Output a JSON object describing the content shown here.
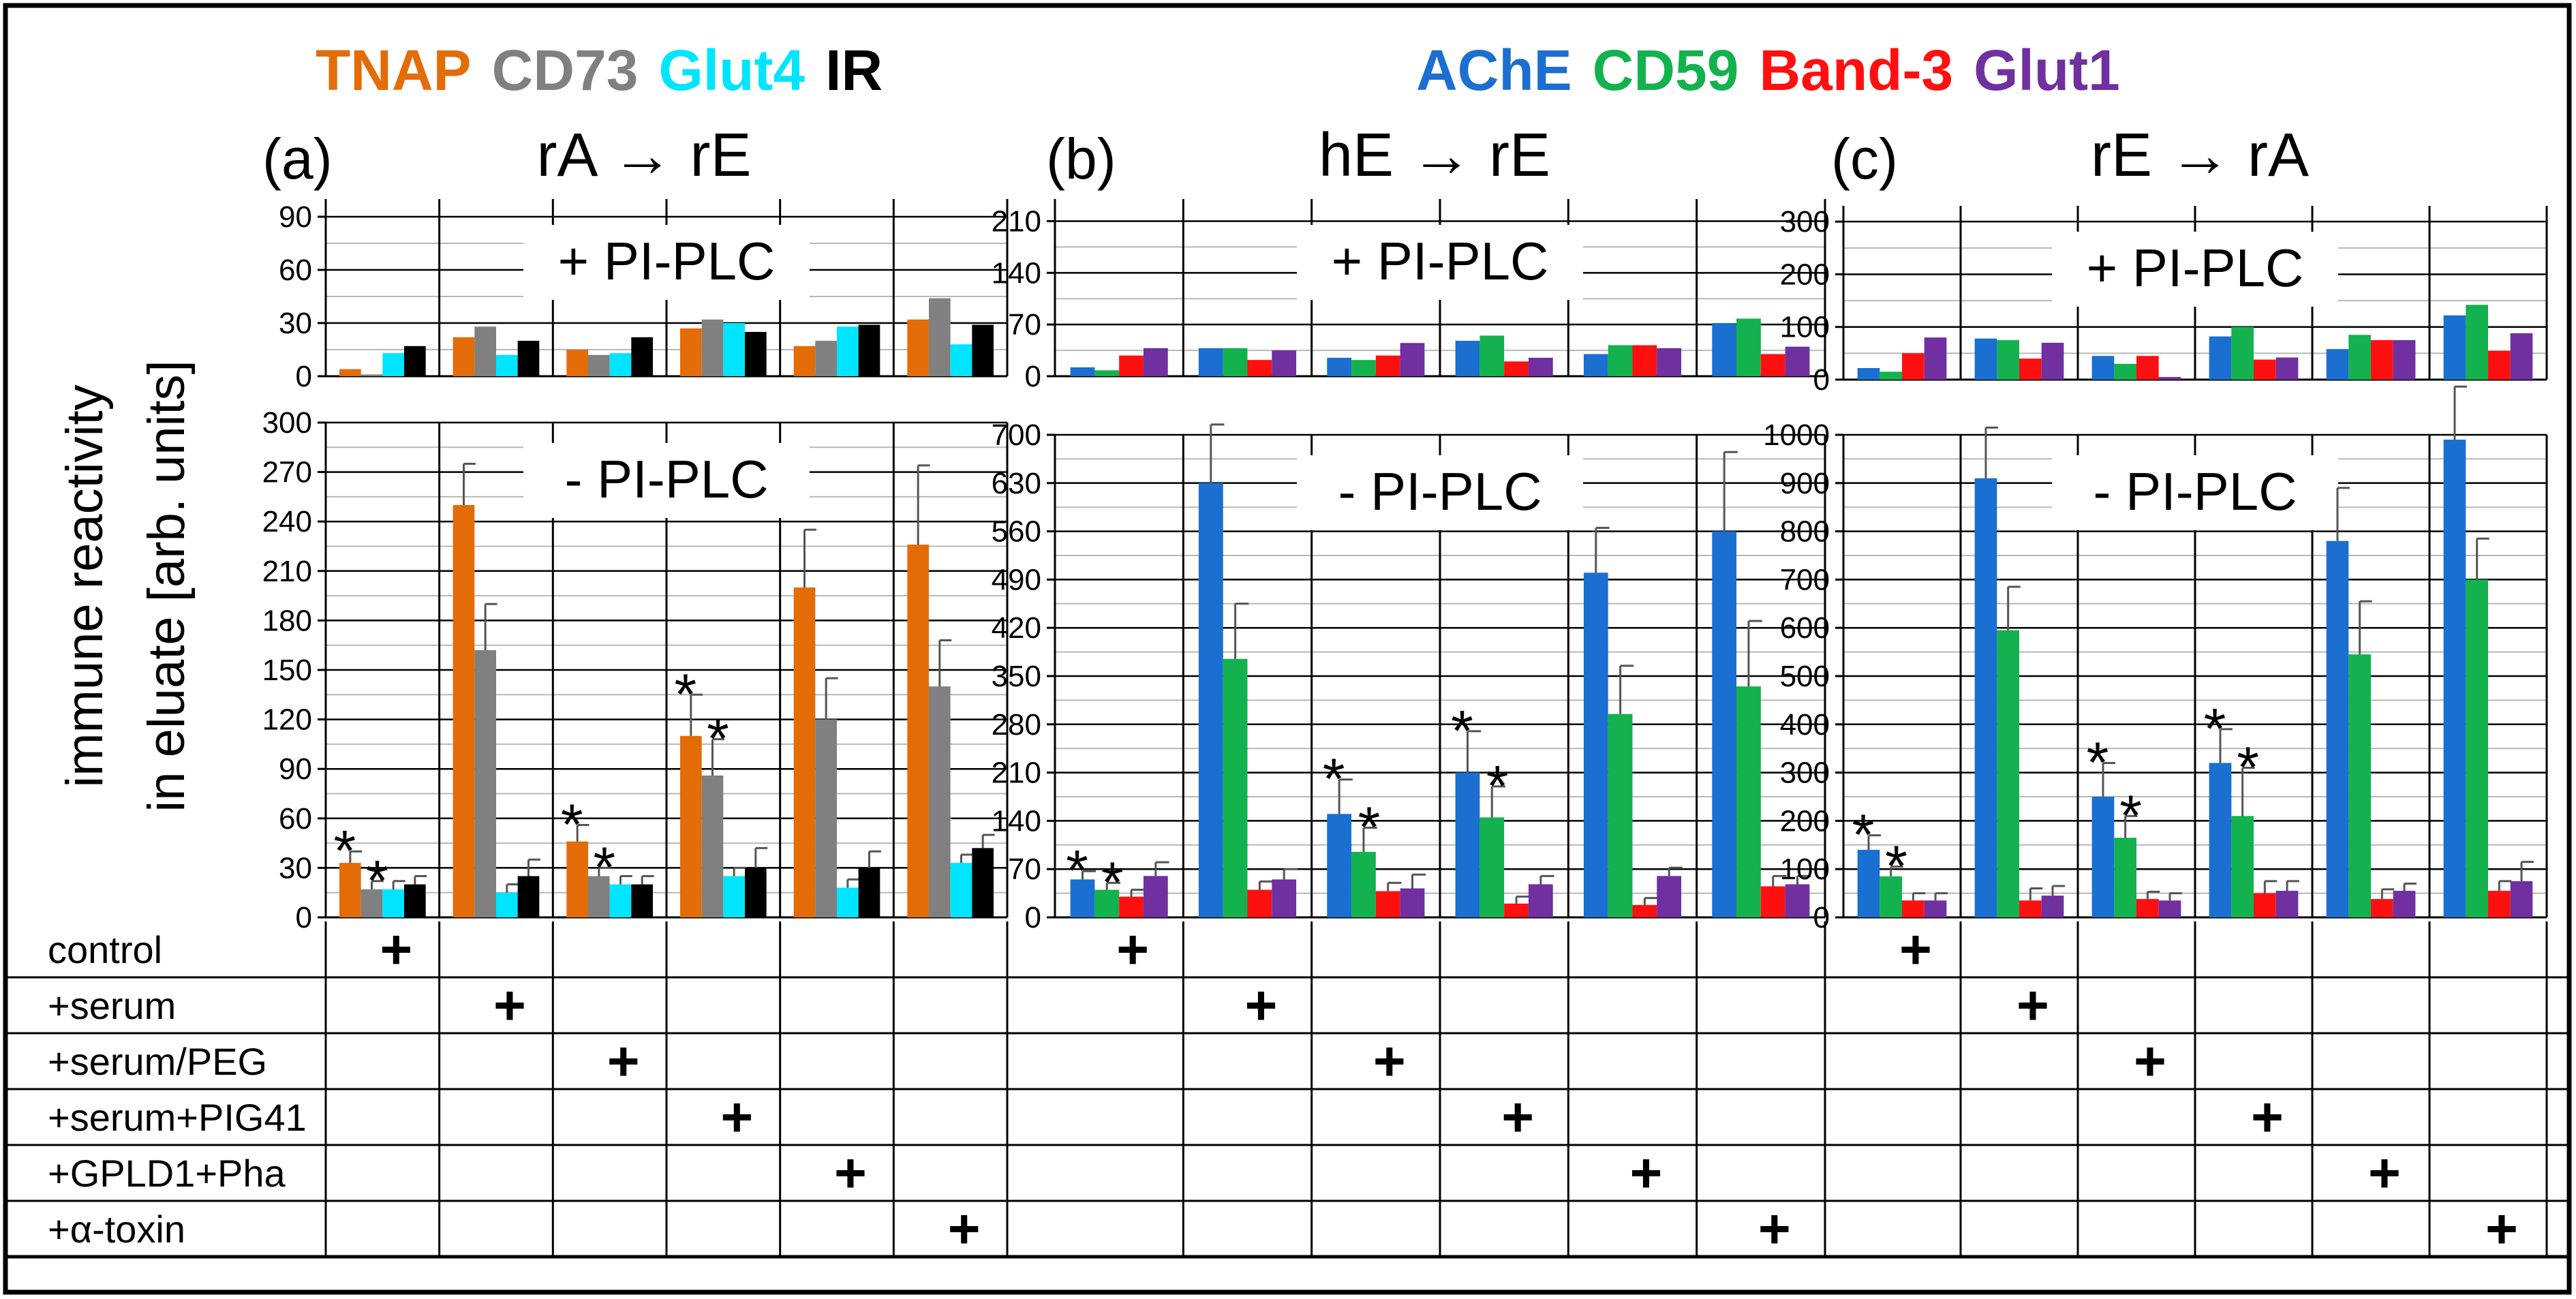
{
  "chart_data": {
    "type": "bar",
    "ylabel_line1": "immune reactivity",
    "ylabel_line2": "in eluate [arb. units]",
    "legend_left": [
      {
        "name": "TNAP",
        "color": "#e36c09"
      },
      {
        "name": "CD73",
        "color": "#808080"
      },
      {
        "name": "Glut4",
        "color": "#00e5ff"
      },
      {
        "name": "IR",
        "color": "#000000"
      }
    ],
    "legend_right": [
      {
        "name": "AChE",
        "color": "#1b6fd0"
      },
      {
        "name": "CD59",
        "color": "#13b24e"
      },
      {
        "name": "Band-3",
        "color": "#ff1010"
      },
      {
        "name": "Glut1",
        "color": "#7030a0"
      }
    ],
    "condition_rows": [
      "control",
      "+serum",
      "+serum/PEG",
      "+serum+PIG41",
      "+GPLD1+Pha",
      "+α-toxin"
    ],
    "plus_mark": "+",
    "star_mark": "*",
    "box_labels": {
      "plus": "+ PI-PLC",
      "minus": "- PI-PLC"
    },
    "panels": [
      {
        "letter": "(a)",
        "title": "rA → rE",
        "series": [
          "TNAP",
          "CD73",
          "Glut4",
          "IR"
        ],
        "plus": {
          "ylim": [
            0,
            100
          ],
          "ticks": [
            0,
            30,
            60,
            90
          ],
          "values": [
            [
              4,
              1,
              13,
              17
            ],
            [
              22,
              28,
              12,
              20
            ],
            [
              15,
              12,
              13,
              22
            ],
            [
              27,
              32,
              30,
              25
            ],
            [
              17,
              20,
              28,
              29
            ],
            [
              32,
              44,
              18,
              29
            ]
          ]
        },
        "minus": {
          "ylim": [
            0,
            300
          ],
          "ticks": [
            0,
            30,
            60,
            90,
            120,
            150,
            180,
            210,
            240,
            270,
            300
          ],
          "values": [
            [
              33,
              17,
              17,
              20
            ],
            [
              250,
              162,
              15,
              25
            ],
            [
              46,
              25,
              20,
              20
            ],
            [
              110,
              86,
              25,
              30
            ],
            [
              200,
              120,
              18,
              30
            ],
            [
              226,
              140,
              33,
              42
            ]
          ],
          "errors": [
            [
              7,
              5,
              5,
              5
            ],
            [
              25,
              28,
              5,
              10
            ],
            [
              10,
              5,
              5,
              5
            ],
            [
              25,
              22,
              5,
              12
            ],
            [
              35,
              25,
              5,
              10
            ],
            [
              48,
              28,
              5,
              8
            ]
          ],
          "stars": [
            [
              true,
              true,
              false,
              false
            ],
            [
              false,
              false,
              false,
              false
            ],
            [
              true,
              true,
              false,
              false
            ],
            [
              true,
              true,
              false,
              false
            ],
            [
              false,
              false,
              false,
              false
            ],
            [
              false,
              false,
              false,
              false
            ]
          ]
        }
      },
      {
        "letter": "(b)",
        "title": "hE → rE",
        "series": [
          "AChE",
          "CD59",
          "Band-3",
          "Glut1"
        ],
        "plus": {
          "ylim": [
            0,
            240
          ],
          "ticks": [
            0,
            70,
            140,
            210
          ],
          "values": [
            [
              12,
              8,
              28,
              38
            ],
            [
              38,
              38,
              22,
              35
            ],
            [
              25,
              22,
              28,
              45
            ],
            [
              48,
              55,
              20,
              25
            ],
            [
              30,
              42,
              42,
              38
            ],
            [
              72,
              78,
              30,
              40
            ]
          ]
        },
        "minus": {
          "ylim": [
            0,
            700
          ],
          "ticks": [
            0,
            70,
            140,
            210,
            280,
            350,
            420,
            490,
            560,
            630,
            700
          ],
          "values": [
            [
              55,
              40,
              30,
              60
            ],
            [
              630,
              375,
              40,
              55
            ],
            [
              150,
              95,
              38,
              42
            ],
            [
              210,
              145,
              20,
              48
            ],
            [
              500,
              295,
              18,
              60
            ],
            [
              560,
              335,
              45,
              48
            ]
          ],
          "errors": [
            [
              12,
              10,
              10,
              20
            ],
            [
              85,
              80,
              12,
              15
            ],
            [
              50,
              35,
              12,
              20
            ],
            [
              60,
              45,
              10,
              12
            ],
            [
              65,
              70,
              10,
              12
            ],
            [
              115,
              95,
              15,
              12
            ]
          ],
          "stars": [
            [
              true,
              true,
              false,
              false
            ],
            [
              false,
              false,
              false,
              false
            ],
            [
              true,
              true,
              false,
              false
            ],
            [
              true,
              true,
              false,
              false
            ],
            [
              false,
              false,
              false,
              false
            ],
            [
              false,
              false,
              false,
              false
            ]
          ]
        }
      },
      {
        "letter": "(c)",
        "title": "rE → rA",
        "series": [
          "AChE",
          "CD59",
          "Band-3",
          "Glut1"
        ],
        "plus": {
          "ylim": [
            0,
            330
          ],
          "ticks": [
            0,
            100,
            200,
            300
          ],
          "values": [
            [
              22,
              15,
              50,
              80
            ],
            [
              78,
              75,
              40,
              70
            ],
            [
              45,
              30,
              45,
              5
            ],
            [
              82,
              100,
              38,
              42
            ],
            [
              58,
              85,
              75,
              75
            ],
            [
              122,
              142,
              55,
              88
            ]
          ]
        },
        "minus": {
          "ylim": [
            0,
            1000
          ],
          "ticks": [
            0,
            100,
            200,
            300,
            400,
            500,
            600,
            700,
            800,
            900,
            1000
          ],
          "values": [
            [
              140,
              85,
              35,
              35
            ],
            [
              910,
              595,
              35,
              45
            ],
            [
              250,
              165,
              38,
              35
            ],
            [
              320,
              210,
              50,
              55
            ],
            [
              780,
              545,
              38,
              55
            ],
            [
              990,
              700,
              55,
              75
            ]
          ],
          "errors": [
            [
              30,
              20,
              15,
              15
            ],
            [
              105,
              90,
              25,
              20
            ],
            [
              70,
              45,
              15,
              15
            ],
            [
              70,
              100,
              25,
              20
            ],
            [
              110,
              110,
              20,
              15
            ],
            [
              110,
              85,
              20,
              40
            ]
          ],
          "stars": [
            [
              true,
              true,
              false,
              false
            ],
            [
              false,
              false,
              false,
              false
            ],
            [
              true,
              true,
              false,
              false
            ],
            [
              true,
              true,
              false,
              false
            ],
            [
              false,
              false,
              false,
              false
            ],
            [
              false,
              false,
              false,
              false
            ]
          ]
        }
      }
    ]
  }
}
